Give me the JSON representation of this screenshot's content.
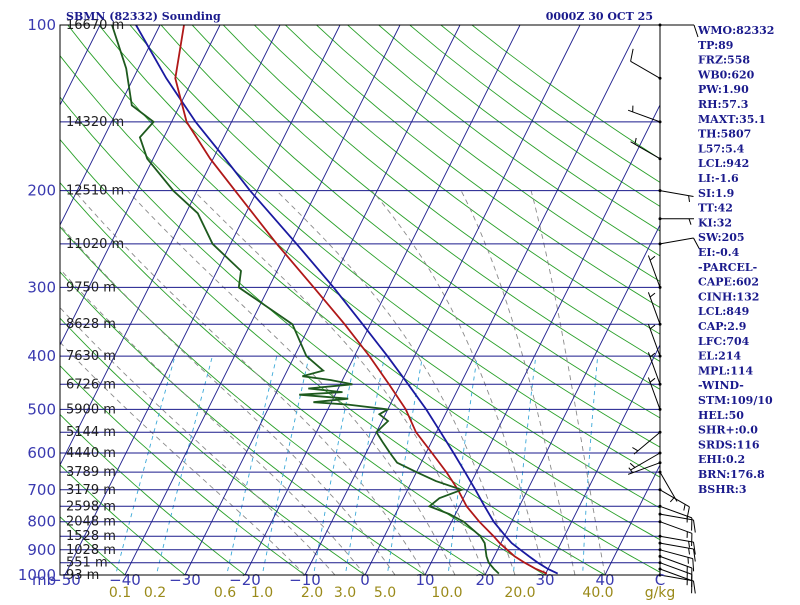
{
  "header": {
    "station_title": "SBMN (82332) Sounding",
    "valid_time": "0000Z 30 OCT 25"
  },
  "indices": [
    "WMO:82332",
    "TP:89",
    "FRZ:558",
    "WB0:620",
    "PW:1.90",
    "RH:57.3",
    "MAXT:35.1",
    "TH:5807",
    "L57:5.4",
    "LCL:942",
    "LI:-1.6",
    "SI:1.9",
    "TT:42",
    "KI:32",
    "SW:205",
    "EI:-0.4",
    "-PARCEL-",
    "CAPE:602",
    "CINH:132",
    "LCL:849",
    "CAP:2.9",
    "LFC:704",
    "EL:214",
    "MPL:114",
    "-WIND-",
    "STM:109/10",
    "HEL:50",
    "SHR+:0.0",
    "SRDS:116",
    "EHI:0.2",
    "BRN:176.8",
    "BSHR:3"
  ],
  "colors": {
    "isobar": "#1a1a8c",
    "isotherm": "#1a1a8c",
    "dry_adiabat": "#2aa02a",
    "moist_adiabat": "#8a8a8a",
    "mixing_ratio": "#3aa8d8",
    "temperature": "#b01818",
    "dewpoint": "#1e5a1e",
    "parcel": "#1a1aa0",
    "wind": "#000000",
    "frame": "#000000"
  },
  "chart_data": {
    "type": "skew-t log-p sounding",
    "title": "SBMN (82332) Sounding",
    "xlabel": "C",
    "ylabel": "mb",
    "mixing_ratio_unit": "g/kg",
    "pressure_range_mb": [
      100,
      1000
    ],
    "pressure_labels": [
      100,
      200,
      300,
      400,
      500,
      600,
      700,
      800,
      900,
      1000
    ],
    "pressure_unit_label": "mb",
    "temperature_labels": [
      -50,
      -40,
      -30,
      -20,
      -10,
      0,
      10,
      20,
      30,
      40
    ],
    "temperature_unit_label": "C",
    "mixing_ratio_labels": [
      "0.1",
      "0.2",
      "0.6",
      "1.0",
      "2.0",
      "3.0",
      "5.0",
      "10.0",
      "20.0",
      "40.0"
    ],
    "heights": [
      {
        "p": 100,
        "label": "16670 m"
      },
      {
        "p": 150,
        "label": "14320 m"
      },
      {
        "p": 200,
        "label": "12510 m"
      },
      {
        "p": 250,
        "label": "11020 m"
      },
      {
        "p": 300,
        "label": "9750 m"
      },
      {
        "p": 350,
        "label": "8628 m"
      },
      {
        "p": 400,
        "label": "7630 m"
      },
      {
        "p": 450,
        "label": "6726 m"
      },
      {
        "p": 500,
        "label": "5900 m"
      },
      {
        "p": 550,
        "label": "5144 m"
      },
      {
        "p": 600,
        "label": "4440 m"
      },
      {
        "p": 650,
        "label": "3789 m"
      },
      {
        "p": 700,
        "label": "3179 m"
      },
      {
        "p": 750,
        "label": "2598 m"
      },
      {
        "p": 800,
        "label": "2048 m"
      },
      {
        "p": 850,
        "label": "1528 m"
      },
      {
        "p": 900,
        "label": "1028 m"
      },
      {
        "p": 950,
        "label": "551 m"
      },
      {
        "p": 1000,
        "label": "93 m"
      }
    ],
    "temperature": [
      [
        994,
        30.2
      ],
      [
        975,
        28.0
      ],
      [
        950,
        25.6
      ],
      [
        925,
        23.4
      ],
      [
        900,
        21.6
      ],
      [
        875,
        19.8
      ],
      [
        850,
        18.2
      ],
      [
        800,
        14.6
      ],
      [
        750,
        11.2
      ],
      [
        700,
        8.4
      ],
      [
        650,
        5.0
      ],
      [
        600,
        1.0
      ],
      [
        550,
        -3.4
      ],
      [
        500,
        -7.0
      ],
      [
        450,
        -11.9
      ],
      [
        400,
        -17.5
      ],
      [
        350,
        -24.3
      ],
      [
        300,
        -32.5
      ],
      [
        250,
        -42.3
      ],
      [
        200,
        -53.7
      ],
      [
        175,
        -60.5
      ],
      [
        150,
        -67.5
      ],
      [
        125,
        -73.0
      ],
      [
        100,
        -76.0
      ]
    ],
    "dewpoint": [
      [
        994,
        22.2
      ],
      [
        975,
        21.0
      ],
      [
        950,
        19.6
      ],
      [
        925,
        18.7
      ],
      [
        900,
        18.0
      ],
      [
        875,
        17.3
      ],
      [
        850,
        16.0
      ],
      [
        800,
        12.0
      ],
      [
        775,
        9.0
      ],
      [
        750,
        5.0
      ],
      [
        725,
        6.0
      ],
      [
        700,
        9.0
      ],
      [
        675,
        4.0
      ],
      [
        650,
        0.0
      ],
      [
        625,
        -4.0
      ],
      [
        600,
        -6.0
      ],
      [
        575,
        -8.0
      ],
      [
        550,
        -10.0
      ],
      [
        525,
        -9.0
      ],
      [
        510,
        -11.0
      ],
      [
        500,
        -10.0
      ],
      [
        490,
        -17.0
      ],
      [
        485,
        -23.0
      ],
      [
        478,
        -17.5
      ],
      [
        470,
        -26.0
      ],
      [
        465,
        -19.0
      ],
      [
        458,
        -25.0
      ],
      [
        450,
        -18.0
      ],
      [
        442,
        -22.0
      ],
      [
        435,
        -27.0
      ],
      [
        425,
        -24.0
      ],
      [
        400,
        -28.0
      ],
      [
        350,
        -33.0
      ],
      [
        300,
        -45.0
      ],
      [
        280,
        -46.0
      ],
      [
        250,
        -53.0
      ],
      [
        220,
        -58.0
      ],
      [
        200,
        -64.0
      ],
      [
        175,
        -71.0
      ],
      [
        160,
        -74.0
      ],
      [
        150,
        -73.0
      ],
      [
        140,
        -78.0
      ],
      [
        120,
        -82.0
      ],
      [
        100,
        -88.0
      ]
    ],
    "parcel": [
      [
        994,
        32.0
      ],
      [
        975,
        30.0
      ],
      [
        950,
        27.8
      ],
      [
        925,
        25.8
      ],
      [
        900,
        23.8
      ],
      [
        875,
        21.8
      ],
      [
        850,
        20.2
      ],
      [
        800,
        17.0
      ],
      [
        750,
        14.2
      ],
      [
        700,
        11.3
      ],
      [
        650,
        8.1
      ],
      [
        600,
        4.6
      ],
      [
        550,
        0.7
      ],
      [
        500,
        -3.6
      ],
      [
        450,
        -8.7
      ],
      [
        400,
        -14.5
      ],
      [
        350,
        -21.3
      ],
      [
        300,
        -29.2
      ],
      [
        250,
        -39.0
      ],
      [
        214,
        -47.5
      ],
      [
        200,
        -51.2
      ],
      [
        175,
        -58.0
      ],
      [
        150,
        -66.0
      ],
      [
        125,
        -74.5
      ],
      [
        100,
        -84.0
      ]
    ],
    "wind": [
      {
        "p": 1000,
        "dir": 100,
        "spd": 10
      },
      {
        "p": 975,
        "dir": 110,
        "spd": 15
      },
      {
        "p": 950,
        "dir": 110,
        "spd": 15
      },
      {
        "p": 925,
        "dir": 110,
        "spd": 15
      },
      {
        "p": 900,
        "dir": 105,
        "spd": 15
      },
      {
        "p": 875,
        "dir": 100,
        "spd": 15
      },
      {
        "p": 850,
        "dir": 100,
        "spd": 15
      },
      {
        "p": 800,
        "dir": 110,
        "spd": 15
      },
      {
        "p": 775,
        "dir": 100,
        "spd": 10
      },
      {
        "p": 750,
        "dir": 110,
        "spd": 15
      },
      {
        "p": 700,
        "dir": 120,
        "spd": 15
      },
      {
        "p": 650,
        "dir": 150,
        "spd": 5
      },
      {
        "p": 625,
        "dir": 250,
        "spd": 5
      },
      {
        "p": 600,
        "dir": 240,
        "spd": 5
      },
      {
        "p": 550,
        "dir": 230,
        "spd": 5
      },
      {
        "p": 500,
        "dir": 340,
        "spd": 5
      },
      {
        "p": 450,
        "dir": 340,
        "spd": 5
      },
      {
        "p": 400,
        "dir": 340,
        "spd": 5
      },
      {
        "p": 350,
        "dir": 340,
        "spd": 5
      },
      {
        "p": 300,
        "dir": 340,
        "spd": 5
      },
      {
        "p": 250,
        "dir": 80,
        "spd": 10
      },
      {
        "p": 225,
        "dir": 90,
        "spd": 5
      },
      {
        "p": 200,
        "dir": 100,
        "spd": 5
      },
      {
        "p": 175,
        "dir": 300,
        "spd": 5
      },
      {
        "p": 150,
        "dir": 290,
        "spd": 5
      },
      {
        "p": 125,
        "dir": 300,
        "spd": 10
      },
      {
        "p": 100,
        "dir": 90,
        "spd": 10
      }
    ]
  }
}
